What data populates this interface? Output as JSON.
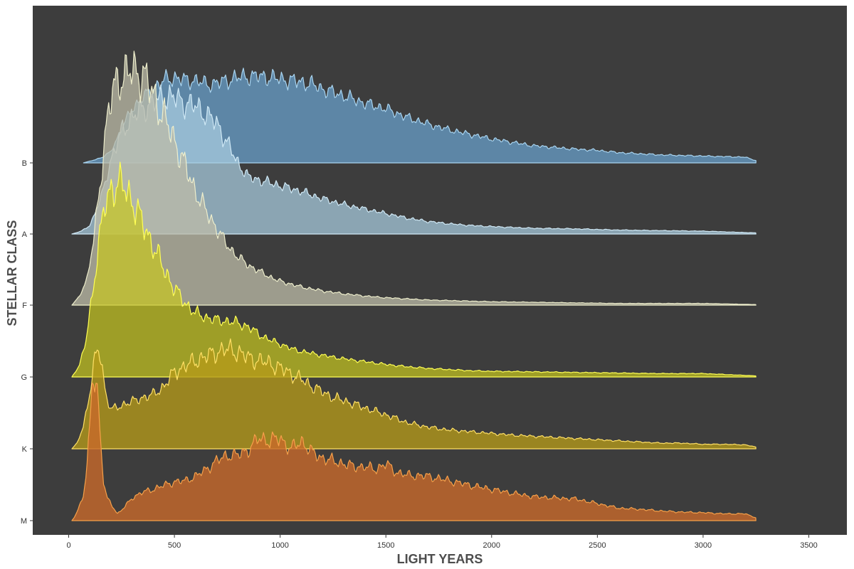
{
  "chart_data": {
    "type": "ridgeline",
    "title": "",
    "xlabel": "LIGHT YEARS",
    "ylabel": "STELLAR CLASS",
    "xlim": [
      -170,
      3680
    ],
    "x_ticks": [
      0,
      500,
      1000,
      1500,
      2000,
      2500,
      3000,
      3500
    ],
    "categories": [
      "M",
      "K",
      "G",
      "F",
      "A",
      "B"
    ],
    "panel_color": "#3d3d3d",
    "grid": false,
    "legend": "none",
    "series": [
      {
        "key": "M",
        "fill": "#c8692a",
        "stroke": "#f5a04a",
        "alpha": 0.8,
        "x_range": [
          15,
          3250
        ],
        "points": [
          [
            15,
            0
          ],
          [
            30,
            0.08
          ],
          [
            50,
            0.25
          ],
          [
            70,
            0.45
          ],
          [
            85,
            0.9
          ],
          [
            100,
            1.6
          ],
          [
            110,
            2.4
          ],
          [
            120,
            2.55
          ],
          [
            130,
            2.5
          ],
          [
            140,
            2.1
          ],
          [
            150,
            1.4
          ],
          [
            165,
            0.7
          ],
          [
            180,
            0.4
          ],
          [
            200,
            0.3
          ],
          [
            230,
            0.12
          ],
          [
            260,
            0.22
          ],
          [
            300,
            0.4
          ],
          [
            350,
            0.5
          ],
          [
            400,
            0.55
          ],
          [
            450,
            0.62
          ],
          [
            500,
            0.68
          ],
          [
            550,
            0.7
          ],
          [
            600,
            0.78
          ],
          [
            650,
            0.9
          ],
          [
            700,
            1.05
          ],
          [
            750,
            1.15
          ],
          [
            800,
            1.15
          ],
          [
            850,
            1.25
          ],
          [
            900,
            1.45
          ],
          [
            950,
            1.4
          ],
          [
            1000,
            1.45
          ],
          [
            1050,
            1.25
          ],
          [
            1100,
            1.4
          ],
          [
            1150,
            1.2
          ],
          [
            1200,
            1.1
          ],
          [
            1250,
            1.05
          ],
          [
            1300,
            1.0
          ],
          [
            1350,
            0.95
          ],
          [
            1400,
            0.95
          ],
          [
            1450,
            0.9
          ],
          [
            1500,
            1.0
          ],
          [
            1550,
            0.85
          ],
          [
            1600,
            0.8
          ],
          [
            1700,
            0.78
          ],
          [
            1800,
            0.7
          ],
          [
            1900,
            0.62
          ],
          [
            2000,
            0.55
          ],
          [
            2100,
            0.48
          ],
          [
            2200,
            0.42
          ],
          [
            2300,
            0.4
          ],
          [
            2400,
            0.38
          ],
          [
            2500,
            0.3
          ],
          [
            2600,
            0.22
          ],
          [
            2700,
            0.2
          ],
          [
            2800,
            0.17
          ],
          [
            2900,
            0.15
          ],
          [
            3000,
            0.14
          ],
          [
            3100,
            0.12
          ],
          [
            3200,
            0.12
          ],
          [
            3250,
            0.05
          ]
        ]
      },
      {
        "key": "K",
        "fill": "#b59a1a",
        "stroke": "#ffe066",
        "alpha": 0.78,
        "x_range": [
          15,
          3250
        ],
        "points": [
          [
            15,
            0
          ],
          [
            40,
            0.1
          ],
          [
            70,
            0.4
          ],
          [
            100,
            1.0
          ],
          [
            125,
            1.6
          ],
          [
            145,
            1.75
          ],
          [
            160,
            1.4
          ],
          [
            175,
            0.95
          ],
          [
            200,
            0.7
          ],
          [
            230,
            0.72
          ],
          [
            270,
            0.8
          ],
          [
            310,
            0.84
          ],
          [
            350,
            0.9
          ],
          [
            400,
            0.95
          ],
          [
            450,
            1.1
          ],
          [
            500,
            1.35
          ],
          [
            550,
            1.45
          ],
          [
            600,
            1.55
          ],
          [
            650,
            1.62
          ],
          [
            700,
            1.7
          ],
          [
            750,
            1.75
          ],
          [
            800,
            1.7
          ],
          [
            850,
            1.6
          ],
          [
            900,
            1.55
          ],
          [
            950,
            1.5
          ],
          [
            1000,
            1.42
          ],
          [
            1050,
            1.32
          ],
          [
            1100,
            1.22
          ],
          [
            1150,
            1.1
          ],
          [
            1200,
            1.0
          ],
          [
            1250,
            0.9
          ],
          [
            1300,
            0.85
          ],
          [
            1400,
            0.72
          ],
          [
            1500,
            0.6
          ],
          [
            1600,
            0.46
          ],
          [
            1700,
            0.38
          ],
          [
            1800,
            0.33
          ],
          [
            1900,
            0.3
          ],
          [
            2000,
            0.27
          ],
          [
            2100,
            0.24
          ],
          [
            2200,
            0.22
          ],
          [
            2300,
            0.2
          ],
          [
            2400,
            0.18
          ],
          [
            2500,
            0.16
          ],
          [
            2600,
            0.14
          ],
          [
            2700,
            0.12
          ],
          [
            2800,
            0.1
          ],
          [
            2900,
            0.1
          ],
          [
            3000,
            0.08
          ],
          [
            3100,
            0.08
          ],
          [
            3200,
            0.07
          ],
          [
            3250,
            0.03
          ]
        ]
      },
      {
        "key": "G",
        "fill": "#c8c81e",
        "stroke": "#ffff55",
        "alpha": 0.7,
        "x_range": [
          15,
          3250
        ],
        "points": [
          [
            15,
            0
          ],
          [
            50,
            0.2
          ],
          [
            80,
            0.6
          ],
          [
            110,
            1.4
          ],
          [
            140,
            2.3
          ],
          [
            170,
            3.0
          ],
          [
            200,
            3.3
          ],
          [
            230,
            3.4
          ],
          [
            260,
            3.35
          ],
          [
            300,
            3.1
          ],
          [
            350,
            2.7
          ],
          [
            400,
            2.3
          ],
          [
            450,
            1.9
          ],
          [
            500,
            1.55
          ],
          [
            550,
            1.3
          ],
          [
            600,
            1.12
          ],
          [
            650,
            1.05
          ],
          [
            700,
            1.0
          ],
          [
            750,
            0.98
          ],
          [
            800,
            0.95
          ],
          [
            850,
            0.88
          ],
          [
            900,
            0.75
          ],
          [
            950,
            0.65
          ],
          [
            1000,
            0.58
          ],
          [
            1050,
            0.5
          ],
          [
            1100,
            0.45
          ],
          [
            1200,
            0.38
          ],
          [
            1300,
            0.32
          ],
          [
            1400,
            0.27
          ],
          [
            1500,
            0.22
          ],
          [
            1600,
            0.18
          ],
          [
            1700,
            0.15
          ],
          [
            1800,
            0.13
          ],
          [
            1900,
            0.11
          ],
          [
            2000,
            0.1
          ],
          [
            2200,
            0.09
          ],
          [
            2400,
            0.08
          ],
          [
            2600,
            0.07
          ],
          [
            2800,
            0.06
          ],
          [
            3000,
            0.06
          ],
          [
            3250,
            0.02
          ]
        ]
      },
      {
        "key": "F",
        "fill": "#bdbca8",
        "stroke": "#eeeecc",
        "alpha": 0.75,
        "x_range": [
          15,
          3250
        ],
        "points": [
          [
            15,
            0
          ],
          [
            50,
            0.15
          ],
          [
            90,
            0.5
          ],
          [
            120,
            1.2
          ],
          [
            150,
            2.2
          ],
          [
            180,
            3.2
          ],
          [
            210,
            3.8
          ],
          [
            240,
            4.0
          ],
          [
            270,
            4.05
          ],
          [
            300,
            4.1
          ],
          [
            330,
            4.1
          ],
          [
            360,
            4.0
          ],
          [
            400,
            3.7
          ],
          [
            450,
            3.3
          ],
          [
            500,
            2.9
          ],
          [
            550,
            2.45
          ],
          [
            600,
            2.0
          ],
          [
            650,
            1.65
          ],
          [
            700,
            1.35
          ],
          [
            750,
            1.05
          ],
          [
            800,
            0.85
          ],
          [
            850,
            0.7
          ],
          [
            900,
            0.6
          ],
          [
            950,
            0.5
          ],
          [
            1000,
            0.42
          ],
          [
            1100,
            0.32
          ],
          [
            1200,
            0.25
          ],
          [
            1300,
            0.2
          ],
          [
            1400,
            0.16
          ],
          [
            1500,
            0.13
          ],
          [
            1600,
            0.11
          ],
          [
            1700,
            0.09
          ],
          [
            1800,
            0.08
          ],
          [
            2000,
            0.06
          ],
          [
            2200,
            0.05
          ],
          [
            2400,
            0.04
          ],
          [
            2600,
            0.03
          ],
          [
            2800,
            0.03
          ],
          [
            3000,
            0.03
          ],
          [
            3250,
            0.01
          ]
        ]
      },
      {
        "key": "A",
        "fill": "#a9cde0",
        "stroke": "#cfe8f5",
        "alpha": 0.72,
        "x_range": [
          15,
          3250
        ],
        "points": [
          [
            15,
            0
          ],
          [
            60,
            0.05
          ],
          [
            100,
            0.15
          ],
          [
            150,
            0.6
          ],
          [
            200,
            1.3
          ],
          [
            250,
            1.8
          ],
          [
            300,
            2.05
          ],
          [
            350,
            2.2
          ],
          [
            400,
            2.3
          ],
          [
            450,
            2.4
          ],
          [
            500,
            2.4
          ],
          [
            550,
            2.3
          ],
          [
            600,
            2.25
          ],
          [
            650,
            2.1
          ],
          [
            700,
            1.95
          ],
          [
            750,
            1.6
          ],
          [
            800,
            1.25
          ],
          [
            850,
            1.0
          ],
          [
            900,
            0.95
          ],
          [
            950,
            0.9
          ],
          [
            1000,
            0.85
          ],
          [
            1100,
            0.75
          ],
          [
            1200,
            0.62
          ],
          [
            1300,
            0.52
          ],
          [
            1400,
            0.44
          ],
          [
            1500,
            0.36
          ],
          [
            1600,
            0.28
          ],
          [
            1700,
            0.22
          ],
          [
            1800,
            0.18
          ],
          [
            1900,
            0.15
          ],
          [
            2000,
            0.13
          ],
          [
            2200,
            0.1
          ],
          [
            2400,
            0.09
          ],
          [
            2600,
            0.07
          ],
          [
            2800,
            0.06
          ],
          [
            3000,
            0.05
          ],
          [
            3250,
            0.02
          ]
        ]
      },
      {
        "key": "B",
        "fill": "#6aa2cf",
        "stroke": "#a8d4f0",
        "alpha": 0.72,
        "x_range": [
          70,
          3250
        ],
        "points": [
          [
            70,
            0
          ],
          [
            120,
            0.05
          ],
          [
            160,
            0.1
          ],
          [
            200,
            0.2
          ],
          [
            250,
            0.6
          ],
          [
            300,
            0.95
          ],
          [
            350,
            1.15
          ],
          [
            400,
            1.3
          ],
          [
            450,
            1.45
          ],
          [
            500,
            1.5
          ],
          [
            550,
            1.45
          ],
          [
            600,
            1.45
          ],
          [
            650,
            1.38
          ],
          [
            700,
            1.4
          ],
          [
            750,
            1.45
          ],
          [
            800,
            1.5
          ],
          [
            850,
            1.52
          ],
          [
            900,
            1.52
          ],
          [
            950,
            1.5
          ],
          [
            1000,
            1.47
          ],
          [
            1050,
            1.45
          ],
          [
            1100,
            1.42
          ],
          [
            1150,
            1.38
          ],
          [
            1200,
            1.3
          ],
          [
            1300,
            1.18
          ],
          [
            1400,
            1.05
          ],
          [
            1500,
            0.95
          ],
          [
            1600,
            0.8
          ],
          [
            1700,
            0.68
          ],
          [
            1800,
            0.58
          ],
          [
            1900,
            0.5
          ],
          [
            2000,
            0.42
          ],
          [
            2100,
            0.36
          ],
          [
            2200,
            0.3
          ],
          [
            2300,
            0.27
          ],
          [
            2400,
            0.24
          ],
          [
            2500,
            0.22
          ],
          [
            2600,
            0.18
          ],
          [
            2700,
            0.16
          ],
          [
            2800,
            0.14
          ],
          [
            2900,
            0.13
          ],
          [
            3000,
            0.12
          ],
          [
            3100,
            0.11
          ],
          [
            3200,
            0.1
          ],
          [
            3250,
            0.04
          ]
        ]
      }
    ]
  }
}
